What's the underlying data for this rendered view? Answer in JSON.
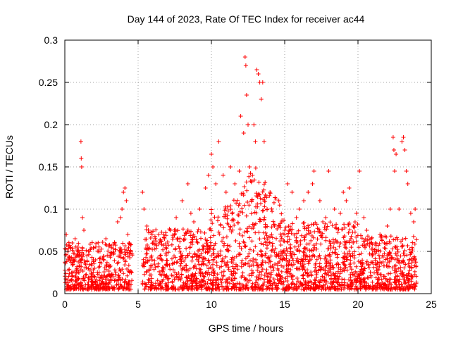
{
  "chart_data": {
    "type": "scatter",
    "title": "Day 144 of 2023, Rate Of TEC Index for receiver ac44",
    "xlabel": "GPS time / hours",
    "ylabel": "ROTI / TECUs",
    "xlim": [
      0,
      25
    ],
    "ylim": [
      0,
      0.3
    ],
    "x_ticks": [
      "0",
      "5",
      "10",
      "15",
      "20",
      "25"
    ],
    "y_ticks": [
      "0",
      "0.05",
      "0.1",
      "0.15",
      "0.2",
      "0.25",
      "0.3"
    ],
    "grid": true,
    "marker": "+",
    "color": "#ff0000",
    "series": [
      {
        "x": [
          0.1,
          0.2,
          0.35,
          0.5,
          0.7,
          0.9,
          1.1,
          1.12,
          1.15,
          1.2,
          1.3,
          1.5,
          1.8,
          2.1,
          2.4,
          2.8,
          3.1,
          3.4,
          3.6,
          3.8,
          3.9,
          4.0,
          4.1,
          4.2,
          4.3,
          4.4,
          4.5,
          5.3,
          5.4,
          5.6,
          6.0,
          6.4,
          6.8,
          7.2,
          7.6,
          8.0,
          8.4,
          8.6,
          8.8,
          9.2,
          9.6,
          9.8,
          10.0,
          10.1,
          10.3,
          10.5,
          10.8,
          11.0,
          11.3,
          11.6,
          11.9,
          12.0,
          12.2,
          12.3,
          12.35,
          12.4,
          12.5,
          12.6,
          12.8,
          12.9,
          13.0,
          13.1,
          13.2,
          13.3,
          13.4,
          13.5,
          13.6,
          13.8,
          14.0,
          14.3,
          14.6,
          14.8,
          15.0,
          15.2,
          15.5,
          15.8,
          16.0,
          16.3,
          16.6,
          16.9,
          17.0,
          17.4,
          17.8,
          18.0,
          18.4,
          18.8,
          19.0,
          19.2,
          19.4,
          19.7,
          19.9,
          20.1,
          20.4,
          20.6,
          20.9,
          21.2,
          21.5,
          21.8,
          22.0,
          22.2,
          22.4,
          22.45,
          22.5,
          22.6,
          22.8,
          23.0,
          23.1,
          23.2,
          23.3,
          23.4,
          23.6,
          23.8,
          23.9
        ],
        "y": [
          0.07,
          0.05,
          0.04,
          0.06,
          0.065,
          0.055,
          0.18,
          0.16,
          0.15,
          0.09,
          0.075,
          0.045,
          0.035,
          0.04,
          0.05,
          0.065,
          0.045,
          0.06,
          0.085,
          0.09,
          0.1,
          0.12,
          0.125,
          0.11,
          0.07,
          0.06,
          0.05,
          0.12,
          0.1,
          0.08,
          0.06,
          0.07,
          0.065,
          0.075,
          0.09,
          0.11,
          0.13,
          0.095,
          0.085,
          0.1,
          0.125,
          0.14,
          0.165,
          0.15,
          0.13,
          0.18,
          0.14,
          0.12,
          0.15,
          0.13,
          0.145,
          0.21,
          0.19,
          0.28,
          0.27,
          0.235,
          0.2,
          0.15,
          0.14,
          0.2,
          0.18,
          0.265,
          0.26,
          0.25,
          0.23,
          0.25,
          0.18,
          0.1,
          0.12,
          0.08,
          0.11,
          0.085,
          0.075,
          0.13,
          0.12,
          0.09,
          0.1,
          0.11,
          0.12,
          0.13,
          0.145,
          0.11,
          0.09,
          0.145,
          0.1,
          0.095,
          0.12,
          0.11,
          0.125,
          0.08,
          0.095,
          0.145,
          0.09,
          0.075,
          0.065,
          0.06,
          0.07,
          0.06,
          0.08,
          0.1,
          0.185,
          0.17,
          0.145,
          0.165,
          0.1,
          0.18,
          0.185,
          0.17,
          0.145,
          0.13,
          0.095,
          0.085,
          0.1
        ]
      }
    ]
  }
}
